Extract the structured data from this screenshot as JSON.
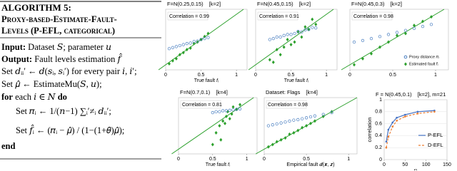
{
  "algorithm": {
    "title": "ALGORITHM 5:",
    "name_lines": [
      "Proxy-based-Estimate-Fault-",
      "Levels (P-EFL, categorical)"
    ],
    "lines": [
      {
        "key": "Input:",
        "rest": " Dataset 𝑆; parameter 𝑢"
      },
      {
        "key": "Output:",
        "rest": " Fault levels estimation 𝑓̂"
      },
      {
        "rest": "Set 𝑑ᵢᵢ′ ← 𝑑(𝑠ᵢ, 𝑠ᵢ′) for every pair 𝑖, 𝑖′;"
      },
      {
        "rest": "Set 𝜇̂ ← EstimateMu(𝑆, 𝑢);"
      },
      {
        "key": "for",
        "rest": " each 𝑖 ∈ 𝑁 ",
        "tail": "do"
      },
      {
        "rest": "Set 𝜋ᵢ ← 1/(𝑛−1) ∑ᵢ′≠ᵢ 𝑑ᵢᵢ′;",
        "indent": true
      },
      {
        "rest": "Set 𝑓̂ᵢ ← (𝜋ᵢ − 𝜇̂) / (1−(1+𝜃)𝜇̂);",
        "indent": true
      },
      {
        "key": "end"
      }
    ]
  },
  "chart_data": [
    {
      "type": "scatter",
      "title": "F=N(0.25,0.15)",
      "subtitle": "[k=2]",
      "annotation": "Correlation = 0.99",
      "xlabel": "True fault 𝑓ᵢ",
      "xlim": [
        0,
        1.15
      ],
      "ylim": [
        -0.1,
        1.1
      ],
      "xticks": [
        0,
        0.5,
        1
      ],
      "series": [
        {
          "color": "#2ca02c",
          "marker": "diamond",
          "x": [
            0.05,
            0.1,
            0.15,
            0.2,
            0.25,
            0.3,
            0.35,
            0.4,
            0.45,
            0.5,
            0.55,
            0.6
          ],
          "values": [
            0.02,
            0.08,
            0.12,
            0.2,
            0.24,
            0.3,
            0.33,
            0.42,
            0.45,
            0.5,
            0.56,
            0.62
          ]
        },
        {
          "color": "#4a7fc1",
          "marker": "circle",
          "x": [
            0.05,
            0.1,
            0.15,
            0.2,
            0.25,
            0.3,
            0.35,
            0.4,
            0.45,
            0.5,
            0.55,
            0.6
          ],
          "values": [
            0.32,
            0.34,
            0.36,
            0.38,
            0.4,
            0.42,
            0.43,
            0.46,
            0.47,
            0.5,
            0.52,
            0.54
          ]
        }
      ]
    },
    {
      "type": "scatter",
      "title": "F=N(0.45,0.15)",
      "subtitle": "[k=2]",
      "annotation": "Correlation = 0.91",
      "xlabel": "True fault 𝑓ᵢ",
      "xlim": [
        0,
        1.15
      ],
      "ylim": [
        -0.1,
        1.1
      ],
      "xticks": [
        0,
        0.5,
        1
      ],
      "series": [
        {
          "color": "#2ca02c",
          "marker": "diamond",
          "x": [
            0.2,
            0.25,
            0.3,
            0.35,
            0.4,
            0.45,
            0.5,
            0.55,
            0.6,
            0.65,
            0.7,
            0.75,
            0.8,
            0.85
          ],
          "values": [
            0.1,
            0.05,
            0.3,
            0.2,
            0.35,
            0.5,
            0.4,
            0.45,
            0.65,
            0.55,
            0.75,
            0.7,
            0.9,
            0.8
          ]
        },
        {
          "color": "#4a7fc1",
          "marker": "circle",
          "x": [
            0.2,
            0.25,
            0.3,
            0.35,
            0.4,
            0.45,
            0.5,
            0.55,
            0.6,
            0.65,
            0.7,
            0.75,
            0.8,
            0.85
          ],
          "values": [
            0.5,
            0.52,
            0.55,
            0.55,
            0.58,
            0.6,
            0.6,
            0.62,
            0.66,
            0.65,
            0.69,
            0.7,
            0.74,
            0.73
          ]
        }
      ]
    },
    {
      "type": "scatter",
      "title": "F=N(0.45,0.3)",
      "subtitle": "[k=2]",
      "annotation": "Correlation = 0.98",
      "xlim": [
        0,
        1.15
      ],
      "ylim": [
        -0.1,
        1.1
      ],
      "xticks": [
        0,
        0.5,
        1
      ],
      "series": [
        {
          "name": "Proxy distance 𝜋ᵢ",
          "color": "#4a7fc1",
          "marker": "circle",
          "x": [
            0.05,
            0.15,
            0.25,
            0.35,
            0.45,
            0.55,
            0.65,
            0.75,
            0.85,
            0.95
          ],
          "values": [
            0.45,
            0.48,
            0.52,
            0.56,
            0.6,
            0.64,
            0.68,
            0.72,
            0.76,
            0.8
          ]
        },
        {
          "name": "Estimated fault 𝑓̂ᵢ",
          "color": "#2ca02c",
          "marker": "diamond",
          "x": [
            0.05,
            0.15,
            0.25,
            0.35,
            0.45,
            0.55,
            0.65,
            0.75,
            0.85,
            0.95
          ],
          "values": [
            0.0,
            0.12,
            0.22,
            0.35,
            0.45,
            0.58,
            0.62,
            0.78,
            0.86,
            0.95
          ]
        }
      ]
    },
    {
      "type": "scatter",
      "title": "F=N(0.7,0.1)",
      "subtitle": "[k=4]",
      "annotation": "Correlation = 0.81",
      "xlabel": "True fault 𝑓ᵢ",
      "xlim": [
        0,
        1.15
      ],
      "ylim": [
        -0.1,
        1.1
      ],
      "xticks": [
        0,
        0.5,
        1
      ],
      "series": [
        {
          "color": "#2ca02c",
          "marker": "diamond",
          "x": [
            0.5,
            0.55,
            0.6,
            0.62,
            0.65,
            0.68,
            0.7,
            0.72,
            0.75,
            0.78,
            0.8,
            0.85,
            0.9
          ],
          "values": [
            0.1,
            0.35,
            0.5,
            0.2,
            0.6,
            0.55,
            0.7,
            0.8,
            0.65,
            0.75,
            0.9,
            0.85,
            0.95
          ]
        },
        {
          "color": "#4a7fc1",
          "marker": "circle",
          "x": [
            0.5,
            0.55,
            0.6,
            0.65,
            0.7,
            0.75,
            0.8,
            0.85,
            0.9
          ],
          "values": [
            0.78,
            0.8,
            0.8,
            0.82,
            0.82,
            0.83,
            0.84,
            0.85,
            0.86
          ]
        }
      ]
    },
    {
      "type": "scatter",
      "title": "Dataset: Flags",
      "subtitle": "[k=4]",
      "annotation": "Correlation = 0.98",
      "xlabel": "Empirical fault  𝒅(𝒙, 𝒛)",
      "xlim": [
        0,
        1.1
      ],
      "ylim": [
        -0.1,
        1.1
      ],
      "xticks": [
        0,
        0.5,
        1
      ],
      "series": [
        {
          "color": "#2ca02c",
          "marker": "diamond",
          "x": [
            0.05,
            0.1,
            0.15,
            0.2,
            0.25,
            0.3,
            0.35,
            0.4,
            0.45,
            0.5,
            0.55,
            0.6,
            0.7,
            0.8
          ],
          "values": [
            0.05,
            0.1,
            0.16,
            0.2,
            0.24,
            0.32,
            0.35,
            0.4,
            0.46,
            0.5,
            0.55,
            0.6,
            0.7,
            0.8
          ]
        },
        {
          "color": "#4a7fc1",
          "marker": "circle",
          "x": [
            0.05,
            0.1,
            0.15,
            0.2,
            0.25,
            0.3,
            0.35,
            0.4,
            0.45,
            0.5,
            0.55,
            0.6,
            0.7,
            0.8
          ],
          "values": [
            0.5,
            0.52,
            0.54,
            0.56,
            0.58,
            0.6,
            0.62,
            0.63,
            0.65,
            0.67,
            0.69,
            0.71,
            0.74,
            0.78
          ]
        }
      ]
    },
    {
      "type": "line",
      "title": "F = N(0.45,0.1)",
      "subtitle": "[k=2], m=21",
      "xlabel": "n",
      "ylabel": "correlation",
      "xlim": [
        0,
        150
      ],
      "ylim": [
        0,
        1
      ],
      "xticks": [
        0,
        50,
        100,
        150
      ],
      "yticks": [
        0,
        0.2,
        0.4,
        0.6,
        0.8,
        1
      ],
      "x": [
        5,
        10,
        20,
        30,
        50,
        80,
        120
      ],
      "series": [
        {
          "name": "P-EFL",
          "color": "#4472c4",
          "values": [
            0.3,
            0.5,
            0.62,
            0.7,
            0.75,
            0.8,
            0.82
          ]
        },
        {
          "name": "D-EFL",
          "color": "#ed7d31",
          "dash": true,
          "values": [
            0.2,
            0.38,
            0.55,
            0.65,
            0.72,
            0.77,
            0.8
          ]
        }
      ]
    }
  ]
}
